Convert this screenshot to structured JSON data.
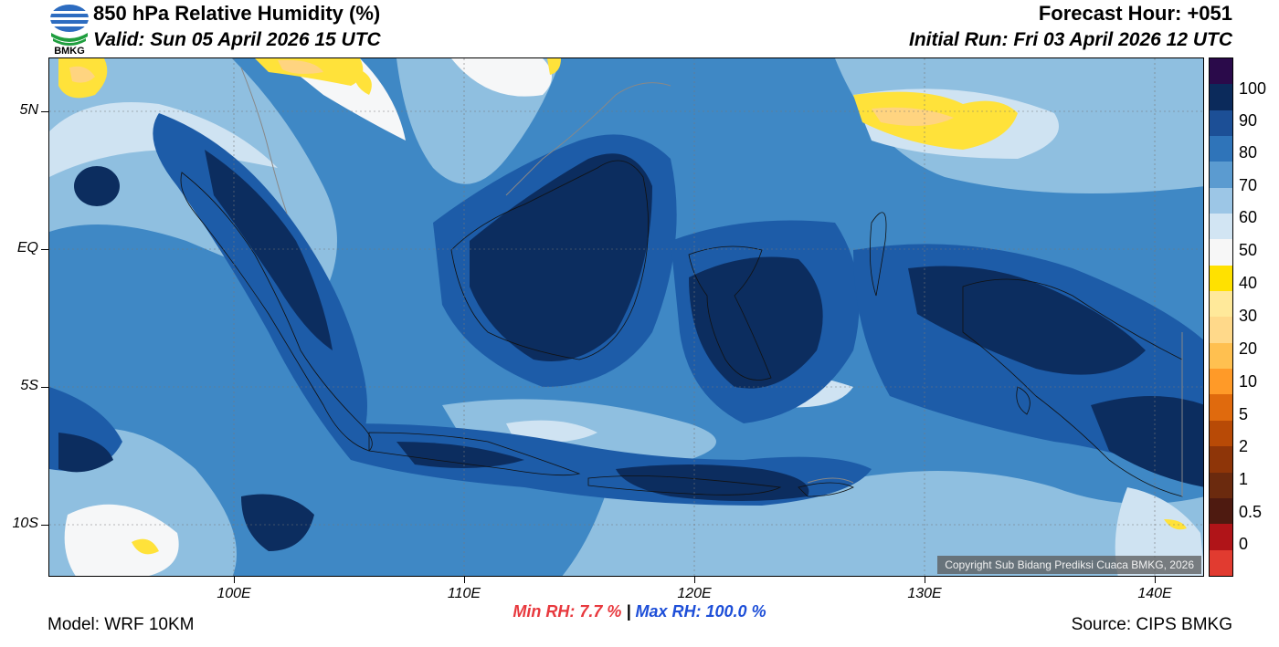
{
  "header": {
    "logo_text": "BMKG",
    "title": "850 hPa Relative Humidity (%)",
    "valid": "Valid: Sun 05 April 2026 15 UTC",
    "forecast_hour": "Forecast Hour: +051",
    "initial_run": "Initial Run: Fri 03 April 2026 12 UTC"
  },
  "map": {
    "lat_labels": [
      "5N",
      "EQ",
      "5S",
      "10S"
    ],
    "lon_labels": [
      "100E",
      "110E",
      "120E",
      "130E",
      "140E"
    ],
    "extent": {
      "lon_min": 92,
      "lon_max": 142.3,
      "lat_min": -12,
      "lat_max": 7
    },
    "copyright": "Copyright Sub Bidang Prediksi Cuaca BMKG, 2026",
    "colors": {
      "very_moist": "#0c2d5f",
      "moist": "#1d5ca8",
      "mid": "#3f88c5",
      "light_blue": "#8fbfe0",
      "pale_blue": "#cfe3f2",
      "dry_white": "#f6f7f8",
      "yellow": "#ffe23a",
      "peach": "#ffd480"
    }
  },
  "colorbar": {
    "labels": [
      "100",
      "90",
      "80",
      "70",
      "60",
      "50",
      "40",
      "30",
      "20",
      "10",
      "5",
      "2",
      "1",
      "0.5",
      "0"
    ],
    "colors": [
      "#2a0a4a",
      "#0b2a5b",
      "#1c4f96",
      "#2f74b9",
      "#5b9bd0",
      "#9cc6e6",
      "#d2e5f3",
      "#f7f7f7",
      "#ffe100",
      "#ffe99a",
      "#ffd98a",
      "#ffc050",
      "#ff9a28",
      "#e06a0d",
      "#b84a06",
      "#8e3508",
      "#6b2a0e",
      "#4e1a10",
      "#b01418",
      "#e13b30"
    ]
  },
  "stats": {
    "min": "Min RH:   7.7 %",
    "separator": "|",
    "max": "Max RH: 100.0 %"
  },
  "footer": {
    "model": "Model: WRF 10KM",
    "source": "Source: CIPS BMKG"
  }
}
